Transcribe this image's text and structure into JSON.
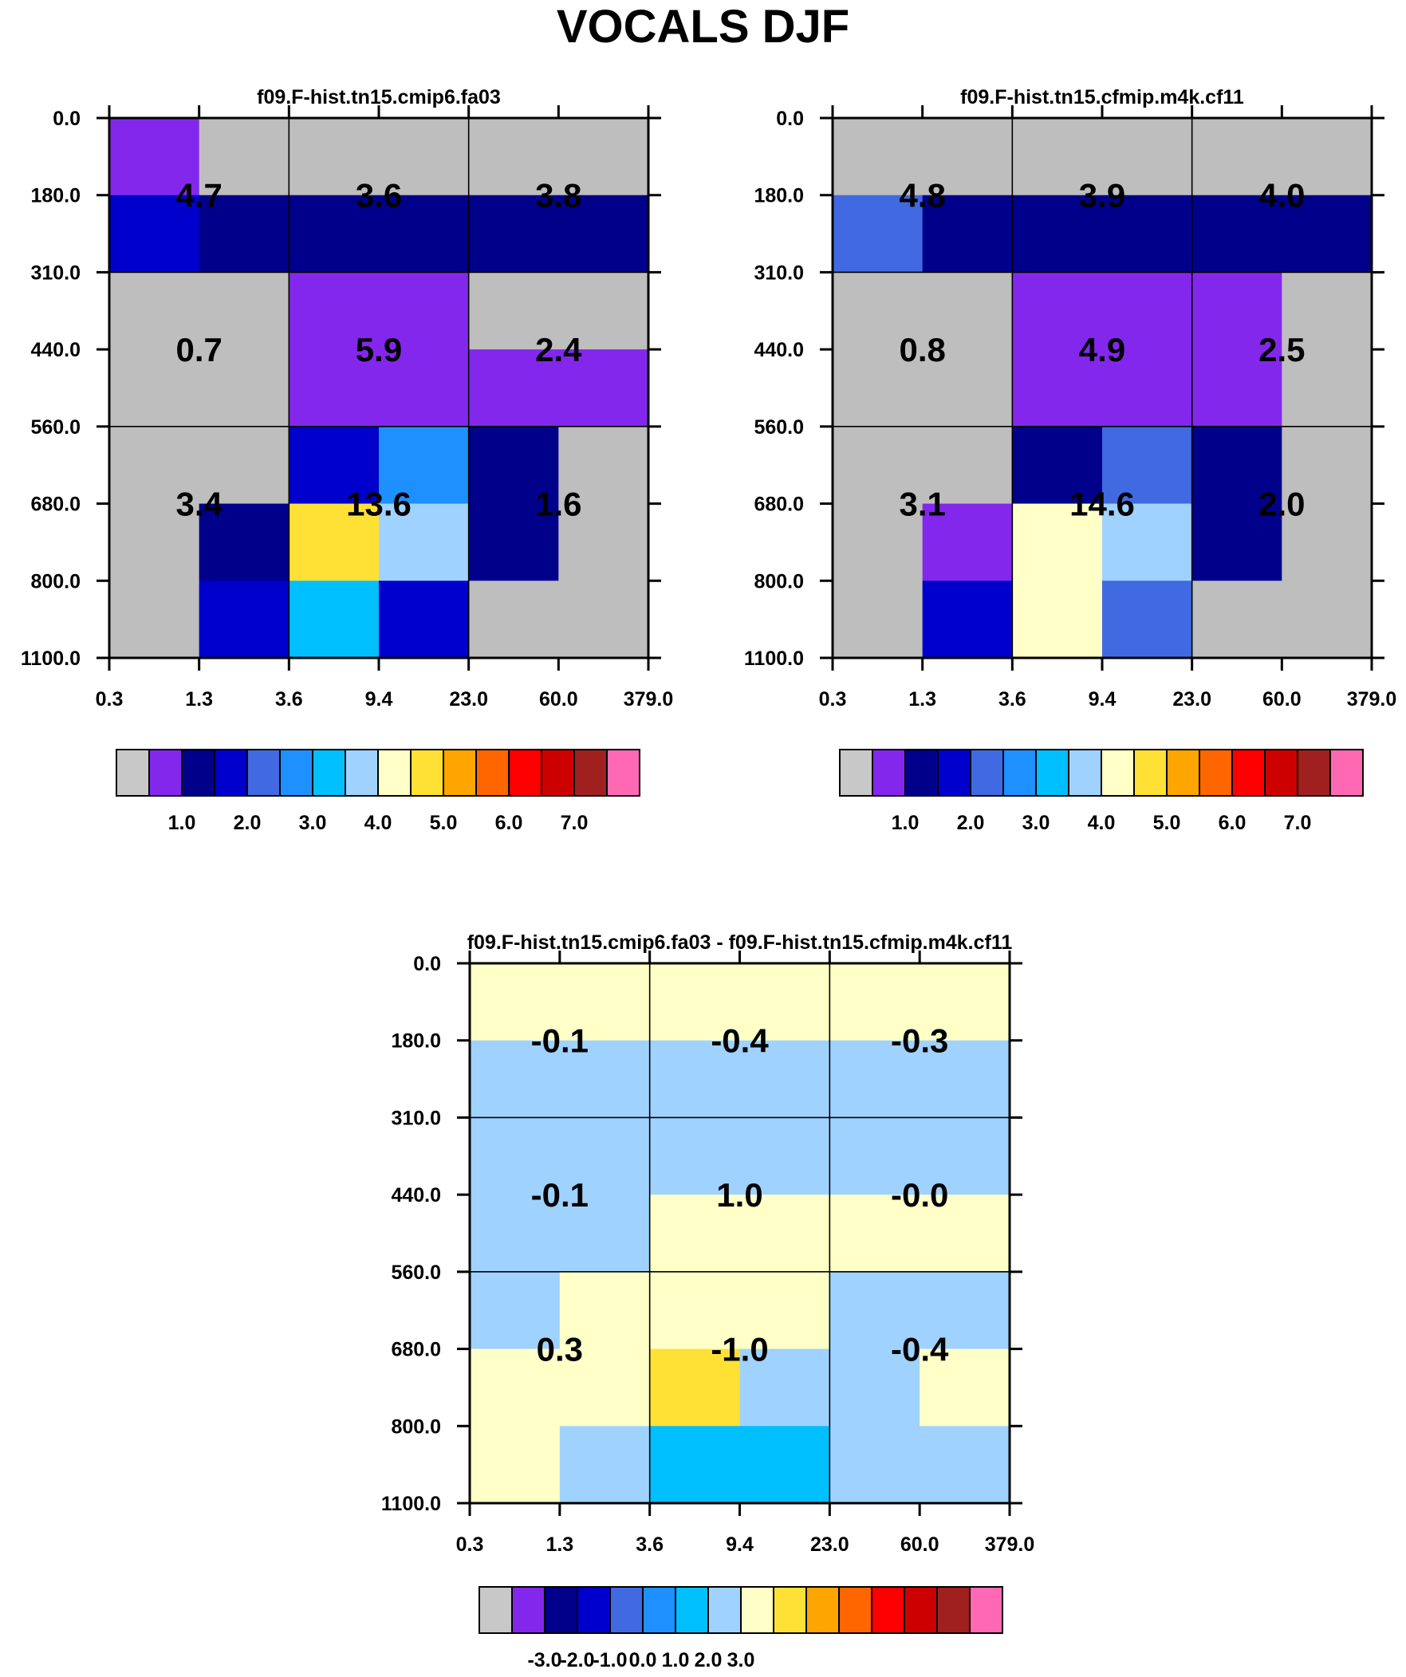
{
  "title": "VOCALS DJF",
  "colors": {
    "c0": "#c8c8c8",
    "c1": "#8427ec",
    "c2": "#00008b",
    "c3": "#0000cd",
    "c4": "#4169e1",
    "c5": "#1e90ff",
    "c6": "#00bfff",
    "c7": "#a0d2ff",
    "c8": "#ffffc8",
    "c9": "#ffe135",
    "c10": "#ffa500",
    "c11": "#ff6600",
    "c12": "#ff0000",
    "c13": "#cd0000",
    "c14": "#a02020",
    "c15": "#ff69b4",
    "missing": "#bebebe"
  },
  "chart_data": [
    {
      "id": "panel-a",
      "type": "heatmap",
      "title": "f09.F-hist.tn15.cmip6.fa03",
      "x_ticks": [
        "0.3",
        "1.3",
        "3.6",
        "9.4",
        "23.0",
        "60.0",
        "379.0"
      ],
      "y_ticks": [
        "0.0",
        "180.0",
        "310.0",
        "440.0",
        "560.0",
        "680.0",
        "800.0",
        "1100.0"
      ],
      "cells": [
        [
          "c1",
          "missing",
          "missing",
          "missing",
          "missing",
          "missing"
        ],
        [
          "c3",
          "c2",
          "c2",
          "c2",
          "c2",
          "c2"
        ],
        [
          "missing",
          "missing",
          "c1",
          "c1",
          "missing",
          "missing"
        ],
        [
          "missing",
          "missing",
          "c1",
          "c1",
          "c1",
          "c1"
        ],
        [
          "missing",
          "missing",
          "c3",
          "c5",
          "c2",
          "missing"
        ],
        [
          "missing",
          "c2",
          "c9",
          "c7",
          "c2",
          "missing"
        ],
        [
          "missing",
          "c3",
          "c6",
          "c3",
          "missing",
          "missing"
        ]
      ],
      "block_values": [
        [
          "4.7",
          "3.6",
          "3.8"
        ],
        [
          "0.7",
          "5.9",
          "2.4"
        ],
        [
          "3.4",
          "13.6",
          "1.6"
        ]
      ],
      "colorbar": {
        "boxes": [
          "c0",
          "c1",
          "c2",
          "c3",
          "c4",
          "c5",
          "c6",
          "c7",
          "c8",
          "c9",
          "c10",
          "c11",
          "c12",
          "c13",
          "c14",
          "c15"
        ],
        "labels": [
          {
            "text": "1.0",
            "boundary": 2
          },
          {
            "text": "2.0",
            "boundary": 4
          },
          {
            "text": "3.0",
            "boundary": 6
          },
          {
            "text": "4.0",
            "boundary": 8
          },
          {
            "text": "5.0",
            "boundary": 10
          },
          {
            "text": "6.0",
            "boundary": 12
          },
          {
            "text": "7.0",
            "boundary": 14
          }
        ]
      }
    },
    {
      "id": "panel-b",
      "type": "heatmap",
      "title": "f09.F-hist.tn15.cfmip.m4k.cf11",
      "x_ticks": [
        "0.3",
        "1.3",
        "3.6",
        "9.4",
        "23.0",
        "60.0",
        "379.0"
      ],
      "y_ticks": [
        "0.0",
        "180.0",
        "310.0",
        "440.0",
        "560.0",
        "680.0",
        "800.0",
        "1100.0"
      ],
      "cells": [
        [
          "missing",
          "missing",
          "missing",
          "missing",
          "missing",
          "missing"
        ],
        [
          "c4",
          "c2",
          "c2",
          "c2",
          "c2",
          "c2"
        ],
        [
          "missing",
          "missing",
          "c1",
          "c1",
          "c1",
          "missing"
        ],
        [
          "missing",
          "missing",
          "c1",
          "c1",
          "c1",
          "missing"
        ],
        [
          "missing",
          "missing",
          "c2",
          "c4",
          "c2",
          "missing"
        ],
        [
          "missing",
          "c1",
          "c8",
          "c7",
          "c2",
          "missing"
        ],
        [
          "missing",
          "c3",
          "c8",
          "c4",
          "missing",
          "missing"
        ]
      ],
      "block_values": [
        [
          "4.8",
          "3.9",
          "4.0"
        ],
        [
          "0.8",
          "4.9",
          "2.5"
        ],
        [
          "3.1",
          "14.6",
          "2.0"
        ]
      ],
      "colorbar": {
        "boxes": [
          "c0",
          "c1",
          "c2",
          "c3",
          "c4",
          "c5",
          "c6",
          "c7",
          "c8",
          "c9",
          "c10",
          "c11",
          "c12",
          "c13",
          "c14",
          "c15"
        ],
        "labels": [
          {
            "text": "1.0",
            "boundary": 2
          },
          {
            "text": "2.0",
            "boundary": 4
          },
          {
            "text": "3.0",
            "boundary": 6
          },
          {
            "text": "4.0",
            "boundary": 8
          },
          {
            "text": "5.0",
            "boundary": 10
          },
          {
            "text": "6.0",
            "boundary": 12
          },
          {
            "text": "7.0",
            "boundary": 14
          }
        ]
      }
    },
    {
      "id": "panel-diff",
      "type": "heatmap",
      "title": "f09.F-hist.tn15.cmip6.fa03 - f09.F-hist.tn15.cfmip.m4k.cf11",
      "x_ticks": [
        "0.3",
        "1.3",
        "3.6",
        "9.4",
        "23.0",
        "60.0",
        "379.0"
      ],
      "y_ticks": [
        "0.0",
        "180.0",
        "310.0",
        "440.0",
        "560.0",
        "680.0",
        "800.0",
        "1100.0"
      ],
      "cells": [
        [
          "c8",
          "c8",
          "c8",
          "c8",
          "c8",
          "c8"
        ],
        [
          "c7",
          "c7",
          "c7",
          "c7",
          "c7",
          "c7"
        ],
        [
          "c7",
          "c7",
          "c7",
          "c7",
          "c7",
          "c7"
        ],
        [
          "c7",
          "c7",
          "c8",
          "c8",
          "c8",
          "c8"
        ],
        [
          "c7",
          "c8",
          "c8",
          "c8",
          "c7",
          "c7"
        ],
        [
          "c8",
          "c8",
          "c9",
          "c7",
          "c7",
          "c8"
        ],
        [
          "c8",
          "c7",
          "c6",
          "c6",
          "c7",
          "c7"
        ]
      ],
      "block_values": [
        [
          "-0.1",
          "-0.4",
          "-0.3"
        ],
        [
          "-0.1",
          "1.0",
          "-0.0"
        ],
        [
          "0.3",
          "-1.0",
          "-0.4"
        ]
      ],
      "colorbar": {
        "boxes": [
          "c0",
          "c1",
          "c2",
          "c3",
          "c4",
          "c5",
          "c6",
          "c7",
          "c8",
          "c9",
          "c10",
          "c11",
          "c12",
          "c13",
          "c14",
          "c15"
        ],
        "labels": [
          {
            "text": "-3.0",
            "boundary": 2
          },
          {
            "text": "-2.0",
            "boundary": 3
          },
          {
            "text": "-1.0",
            "boundary": 4
          },
          {
            "text": "0.0",
            "boundary": 5
          },
          {
            "text": "1.0",
            "boundary": 6
          },
          {
            "text": "2.0",
            "boundary": 7
          },
          {
            "text": "3.0",
            "boundary": 8
          }
        ]
      }
    }
  ]
}
